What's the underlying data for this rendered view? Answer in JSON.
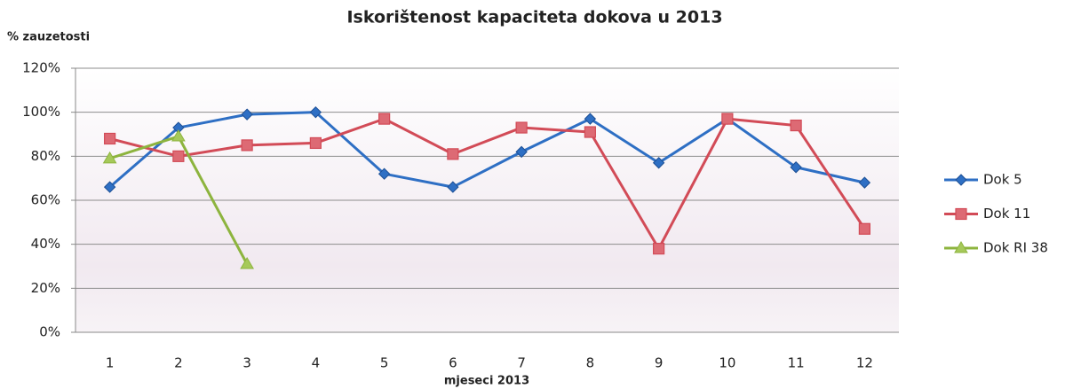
{
  "chart_data": {
    "type": "line",
    "title": "Iskorištenost kapaciteta dokova u 2013",
    "y_axis_label": "% zauzetosti",
    "x_axis_label": "mjeseci 2013",
    "categories": [
      "1",
      "2",
      "3",
      "4",
      "5",
      "6",
      "7",
      "8",
      "9",
      "10",
      "11",
      "12"
    ],
    "series": [
      {
        "name": "Dok 5",
        "color": "#2e6fc4",
        "marker": "diamond",
        "values": [
          66,
          93,
          99,
          100,
          72,
          66,
          82,
          97,
          77,
          97,
          75,
          68
        ]
      },
      {
        "name": "Dok 11",
        "color": "#d24b57",
        "marker": "square",
        "values": [
          88,
          80,
          85,
          86,
          97,
          81,
          93,
          91,
          38,
          97,
          94,
          47
        ]
      },
      {
        "name": "Dok RI 38",
        "color": "#8db43e",
        "marker": "triangle",
        "values": [
          79,
          89,
          31,
          null,
          null,
          null,
          null,
          null,
          null,
          null,
          null,
          null
        ]
      }
    ],
    "ylim": [
      0,
      120
    ],
    "yticks": [
      {
        "value": 0,
        "label": "0%"
      },
      {
        "value": 20,
        "label": "20%"
      },
      {
        "value": 40,
        "label": "40%"
      },
      {
        "value": 60,
        "label": "60%"
      },
      {
        "value": 80,
        "label": "80%"
      },
      {
        "value": 100,
        "label": "100%"
      },
      {
        "value": 120,
        "label": "120%"
      }
    ],
    "grid": true,
    "legend": "right"
  }
}
